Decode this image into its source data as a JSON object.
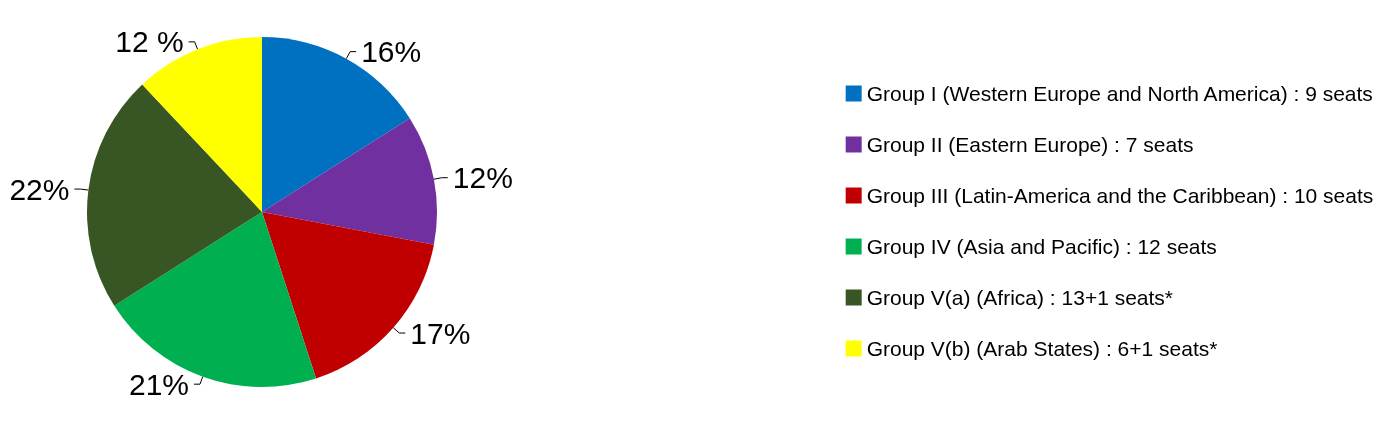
{
  "chart_data": {
    "type": "pie",
    "categories": [
      "Group I (Western Europe and North America) : 9 seats",
      "Group II (Eastern Europe) : 7 seats",
      "Group III (Latin-America and the Caribbean) : 10 seats",
      "Group IV (Asia and Pacific) : 12 seats",
      "Group V(a) (Africa) : 13+1 seats*",
      "Group V(b) (Arab States) : 6+1 seats*"
    ],
    "values": [
      16,
      12,
      17,
      21,
      22,
      12
    ],
    "value_labels": [
      "16%",
      "12%",
      "17%",
      "21%",
      "22%",
      "12 %"
    ],
    "colors": [
      "#0070c0",
      "#7030a0",
      "#c00000",
      "#00b050",
      "#375623",
      "#ffff00"
    ],
    "legend": "right"
  }
}
